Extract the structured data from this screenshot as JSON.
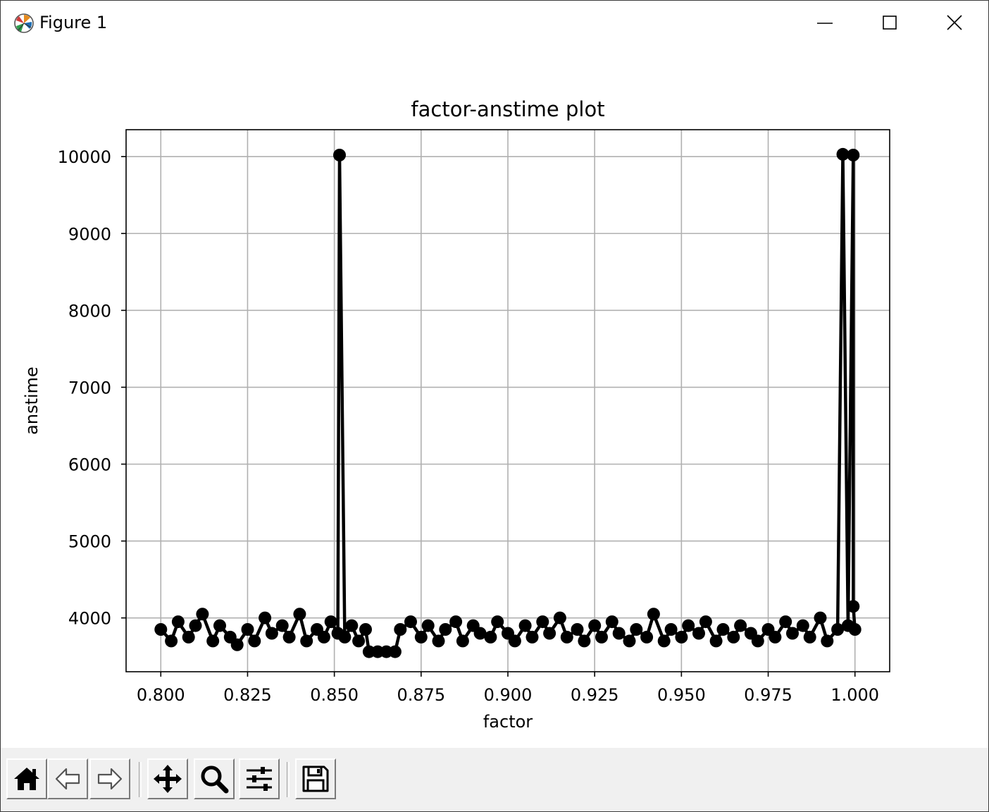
{
  "window": {
    "title": "Figure 1",
    "icons": [
      "matplotlib-logo-icon",
      "minimize-icon",
      "maximize-icon",
      "close-icon"
    ]
  },
  "toolbar": {
    "buttons": [
      {
        "name": "home-button",
        "icon": "home-icon"
      },
      {
        "name": "back-button",
        "icon": "arrow-left-icon"
      },
      {
        "name": "forward-button",
        "icon": "arrow-right-icon"
      },
      {
        "name": "pan-button",
        "icon": "move-icon"
      },
      {
        "name": "zoom-button",
        "icon": "magnifier-icon"
      },
      {
        "name": "configure-subplots-button",
        "icon": "sliders-icon"
      },
      {
        "name": "save-button",
        "icon": "floppy-disk-icon"
      }
    ]
  },
  "chart_data": {
    "type": "line",
    "title": "factor-anstime plot",
    "xlabel": "factor",
    "ylabel": "anstime",
    "xlim": [
      0.79,
      1.01
    ],
    "ylim": [
      3300,
      10350
    ],
    "xticks": [
      0.8,
      0.825,
      0.85,
      0.875,
      0.9,
      0.925,
      0.95,
      0.975,
      1.0
    ],
    "xtick_labels": [
      "0.800",
      "0.825",
      "0.850",
      "0.875",
      "0.900",
      "0.925",
      "0.950",
      "0.975",
      "1.000"
    ],
    "yticks": [
      4000,
      5000,
      6000,
      7000,
      8000,
      9000,
      10000
    ],
    "ytick_labels": [
      "4000",
      "5000",
      "6000",
      "7000",
      "8000",
      "9000",
      "10000"
    ],
    "grid": true,
    "series_color": "#000000",
    "marker": "circle",
    "series": [
      {
        "x": [
          0.8,
          0.803,
          0.805,
          0.808,
          0.81,
          0.812,
          0.815,
          0.817,
          0.82,
          0.822,
          0.825,
          0.827,
          0.83,
          0.832,
          0.835,
          0.837,
          0.84,
          0.842,
          0.845,
          0.847,
          0.849,
          0.851,
          0.8515,
          0.853,
          0.855,
          0.857,
          0.859,
          0.86,
          0.8625,
          0.865,
          0.8675,
          0.869,
          0.872,
          0.875,
          0.877,
          0.88,
          0.882,
          0.885,
          0.887,
          0.89,
          0.892,
          0.895,
          0.897,
          0.9,
          0.902,
          0.905,
          0.907,
          0.91,
          0.912,
          0.915,
          0.917,
          0.92,
          0.922,
          0.925,
          0.927,
          0.93,
          0.932,
          0.935,
          0.937,
          0.94,
          0.942,
          0.945,
          0.947,
          0.95,
          0.952,
          0.955,
          0.957,
          0.96,
          0.962,
          0.965,
          0.967,
          0.97,
          0.972,
          0.975,
          0.977,
          0.98,
          0.982,
          0.985,
          0.987,
          0.99,
          0.992,
          0.995,
          0.9965,
          0.998,
          0.9995,
          0.9995,
          1.0
        ],
        "y": [
          3850,
          3700,
          3950,
          3750,
          3900,
          4050,
          3700,
          3900,
          3750,
          3650,
          3850,
          3700,
          4000,
          3800,
          3900,
          3750,
          4050,
          3700,
          3850,
          3750,
          3950,
          3800,
          10020,
          3750,
          3900,
          3700,
          3850,
          3560,
          3560,
          3560,
          3560,
          3850,
          3950,
          3750,
          3900,
          3700,
          3850,
          3950,
          3700,
          3900,
          3800,
          3750,
          3950,
          3800,
          3700,
          3900,
          3750,
          3950,
          3800,
          4000,
          3750,
          3850,
          3700,
          3900,
          3750,
          3950,
          3800,
          3700,
          3850,
          3750,
          4050,
          3700,
          3850,
          3750,
          3900,
          3800,
          3950,
          3700,
          3850,
          3750,
          3900,
          3800,
          3700,
          3850,
          3750,
          3950,
          3800,
          3900,
          3750,
          4000,
          3700,
          3850,
          10030,
          3900,
          10020,
          4150,
          3850
        ]
      }
    ]
  }
}
